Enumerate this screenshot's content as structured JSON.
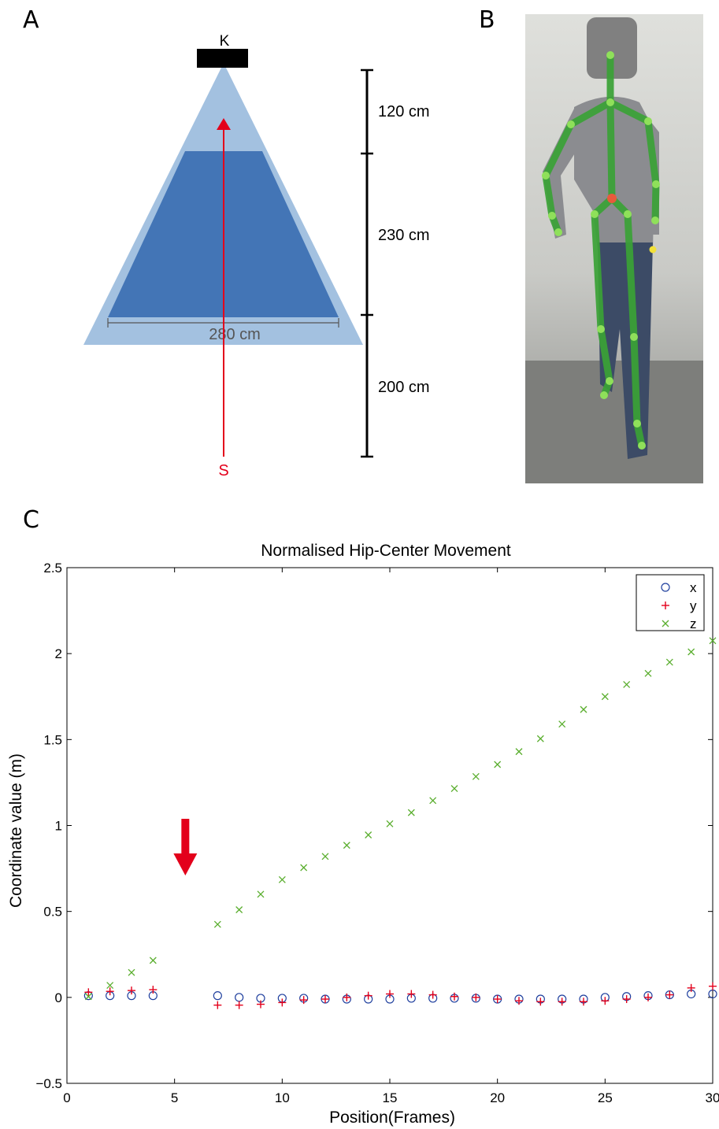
{
  "panels": {
    "a": {
      "label": "A"
    },
    "b": {
      "label": "B"
    },
    "c": {
      "label": "C"
    }
  },
  "diagram": {
    "camera_label": "K",
    "start_label": "S",
    "width_label": "280 cm",
    "distances": [
      "120 cm",
      "230 cm",
      "200 cm"
    ],
    "colors": {
      "outer_cone": "#a3c1e0",
      "inner_zone": "#4375b6",
      "path": "#e3001b",
      "camera": "#000000"
    }
  },
  "photo": {
    "description_icon": "skeleton-tracking-photo",
    "colors": {
      "bone": "#3aa236",
      "joint": "#8fe05a",
      "hip_center": "#e85a3c",
      "extra": "#f2e13a"
    }
  },
  "chart_data": {
    "type": "scatter",
    "title": "Normalised Hip-Center Movement",
    "xlabel": "Position(Frames)",
    "ylabel": "Coordinate value (m)",
    "xlim": [
      0,
      30
    ],
    "ylim": [
      -0.5,
      2.5
    ],
    "xticks": [
      "0",
      "5",
      "10",
      "15",
      "20",
      "25",
      "30"
    ],
    "yticks": [
      "−0.5",
      "0",
      "0.5",
      "1",
      "1.5",
      "2",
      "2.5"
    ],
    "grid": false,
    "legend_position": "top-right",
    "x": [
      1,
      2,
      3,
      4,
      7,
      8,
      9,
      10,
      11,
      12,
      13,
      14,
      15,
      16,
      17,
      18,
      19,
      20,
      21,
      22,
      23,
      24,
      25,
      26,
      27,
      28,
      29,
      30
    ],
    "series": [
      {
        "name": "x",
        "marker": "circle",
        "color": "#1f3f9e",
        "values": [
          0.01,
          0.01,
          0.01,
          0.01,
          0.01,
          0.0,
          -0.005,
          -0.005,
          -0.005,
          -0.01,
          -0.01,
          -0.01,
          -0.01,
          -0.005,
          -0.005,
          -0.005,
          -0.005,
          -0.01,
          -0.01,
          -0.01,
          -0.01,
          -0.01,
          0.0,
          0.005,
          0.01,
          0.015,
          0.02,
          0.02
        ]
      },
      {
        "name": "y",
        "marker": "plus",
        "color": "#e3001b",
        "values": [
          0.03,
          0.035,
          0.04,
          0.045,
          -0.045,
          -0.045,
          -0.04,
          -0.03,
          -0.015,
          -0.01,
          0.0,
          0.01,
          0.02,
          0.02,
          0.015,
          0.005,
          0.0,
          -0.01,
          -0.02,
          -0.025,
          -0.025,
          -0.025,
          -0.02,
          -0.01,
          0.0,
          0.015,
          0.055,
          0.065
        ]
      },
      {
        "name": "z",
        "marker": "cross",
        "color": "#5aae2e",
        "values": [
          0.005,
          0.07,
          0.145,
          0.215,
          0.425,
          0.51,
          0.6,
          0.685,
          0.755,
          0.82,
          0.885,
          0.945,
          1.01,
          1.075,
          1.145,
          1.215,
          1.285,
          1.355,
          1.43,
          1.505,
          1.59,
          1.675,
          1.75,
          1.82,
          1.885,
          1.95,
          2.01,
          2.075
        ]
      }
    ],
    "annotation": {
      "type": "arrow",
      "color": "#e3001b",
      "at_x": 5.5,
      "at_y": 0.7
    }
  }
}
